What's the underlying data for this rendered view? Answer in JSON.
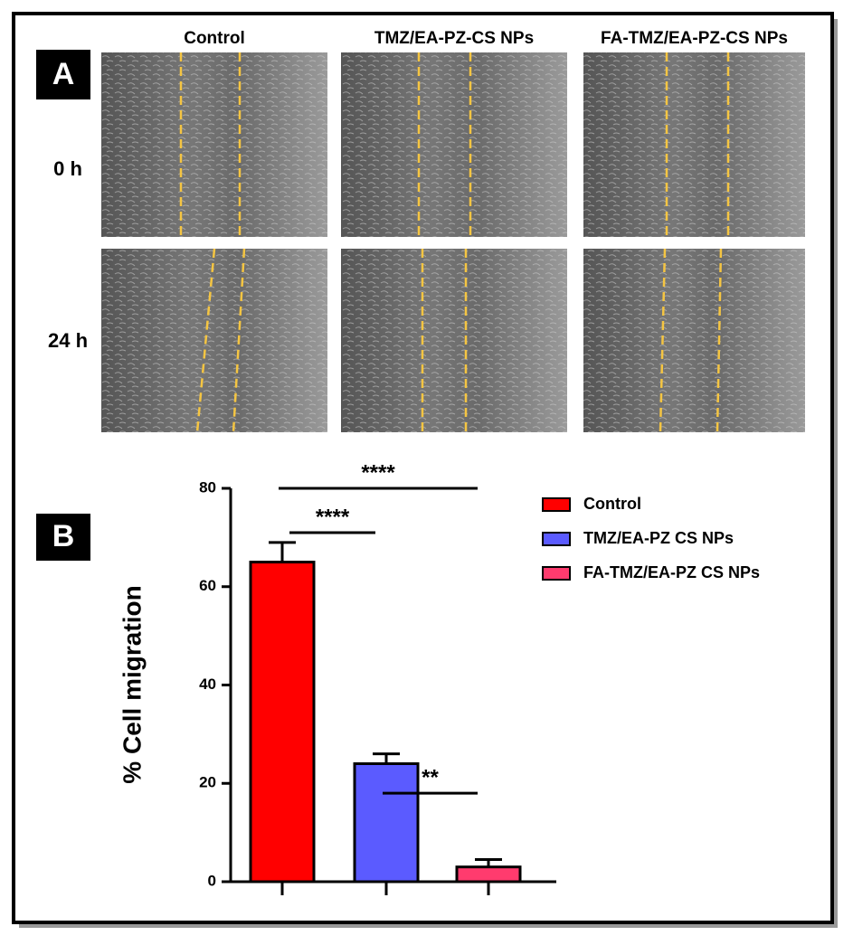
{
  "panel_a": {
    "label": "A",
    "columns": [
      "Control",
      "TMZ/EA-PZ-CS NPs",
      "FA-TMZ/EA-PZ-CS NPs"
    ],
    "rows": [
      "0 h",
      "24 h"
    ]
  },
  "chart_data": {
    "type": "bar",
    "panel_label": "B",
    "ylabel": "% Cell migration",
    "series": [
      {
        "name": "Control",
        "color": "#ff0000",
        "values": [
          65
        ],
        "errors": [
          4
        ]
      },
      {
        "name": "TMZ/EA-PZ CS NPs",
        "color": "#5b5bff",
        "values": [
          24
        ],
        "errors": [
          2
        ]
      },
      {
        "name": "FA-TMZ/EA-PZ CS NPs",
        "color": "#ff3b6e",
        "values": [
          3
        ],
        "errors": [
          1.5
        ]
      }
    ],
    "ylim": [
      0,
      80
    ],
    "yticks": [
      0,
      20,
      40,
      60,
      80
    ],
    "annotations": [
      {
        "text": "****",
        "from": 0,
        "to": 2,
        "y": 80
      },
      {
        "text": "****",
        "from": 0,
        "to": 1,
        "y": 71
      },
      {
        "text": "**",
        "from": 1,
        "to": 2,
        "y": 18
      }
    ]
  }
}
